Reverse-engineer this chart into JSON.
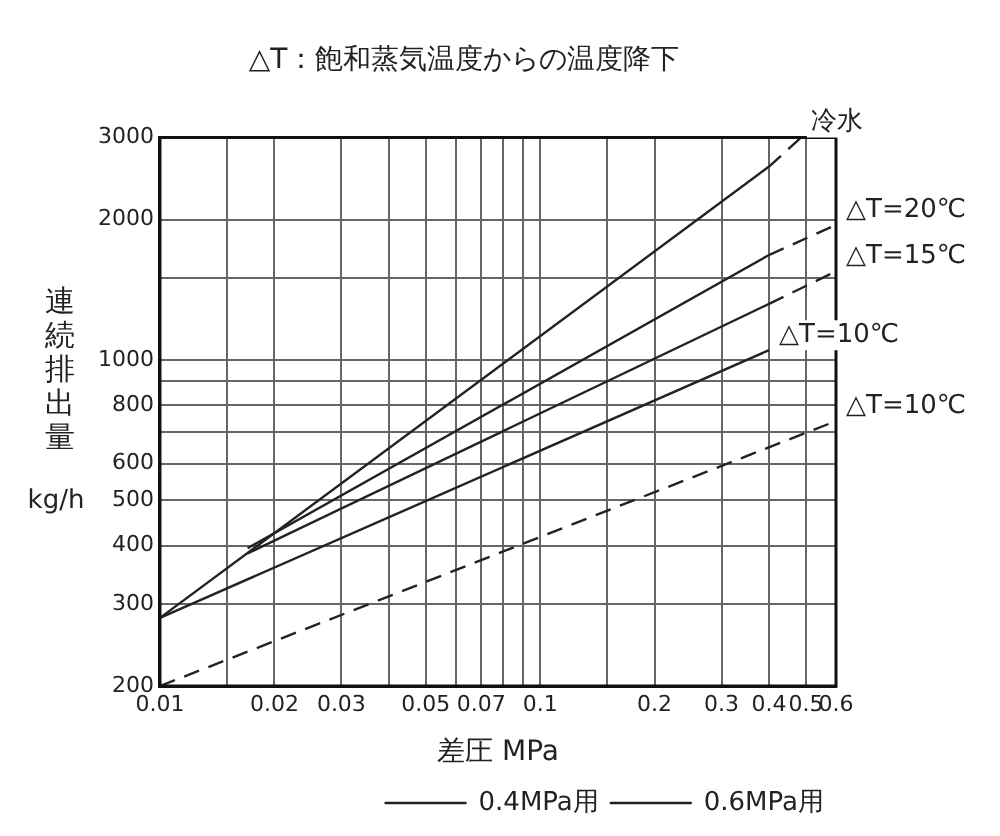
{
  "chart_data": {
    "type": "line",
    "title": "△T：飽和蒸気温度からの温度降下",
    "xlabel": "差圧 MPa",
    "ylabel": "連続排出量 kg/h",
    "log": "xy",
    "grid": true,
    "legend": "bottom right",
    "marker": "none",
    "xlim": [
      0.01,
      0.6
    ],
    "ylim": [
      200,
      3000
    ],
    "xticks": [
      0.01,
      {
        "value": 0.015,
        "label": null
      },
      0.02,
      0.03,
      {
        "value": 0.04,
        "label": null
      },
      0.05,
      {
        "value": 0.06,
        "label": null
      },
      0.07,
      {
        "value": 0.08,
        "label": null
      },
      {
        "value": 0.09,
        "label": null
      },
      0.1,
      {
        "value": 0.15,
        "label": null
      },
      0.2,
      0.3,
      0.4,
      0.5,
      0.6
    ],
    "yticks": [
      200,
      300,
      400,
      500,
      600,
      {
        "value": 700,
        "label": null
      },
      800,
      {
        "value": 900,
        "label": null
      },
      1000,
      {
        "value": 1500,
        "label": null
      },
      2000,
      3000
    ],
    "series": [
      {
        "name": "0.4MPa用",
        "color": "#222222",
        "line_style": "solid",
        "x": [
          0.01,
          0.4
        ],
        "values": [
          280,
          2600
        ]
      },
      {
        "color": "#222222",
        "line_style": "dashed",
        "x": [
          0.4,
          0.485
        ],
        "values": [
          2600,
          3000
        ]
      },
      {
        "color": "#222222",
        "line_style": "solid",
        "x": [
          0.017,
          0.4
        ],
        "values": [
          395,
          1680
        ]
      },
      {
        "color": "#222222",
        "line_style": "dashed",
        "x": [
          0.4,
          0.6
        ],
        "values": [
          1680,
          1950
        ]
      },
      {
        "color": "#222222",
        "line_style": "solid",
        "x": [
          0.017,
          0.4
        ],
        "values": [
          385,
          1320
        ]
      },
      {
        "color": "#222222",
        "line_style": "dashed",
        "x": [
          0.4,
          0.6
        ],
        "values": [
          1320,
          1550
        ]
      },
      {
        "color": "#222222",
        "line_style": "solid",
        "x": [
          0.01,
          0.4
        ],
        "values": [
          280,
          1050
        ]
      },
      {
        "name": "0.6MPa用",
        "color": "#222222",
        "line_style": "dashed",
        "x": [
          0.01,
          0.6
        ],
        "values": [
          200,
          740
        ]
      }
    ],
    "annotations": [
      {
        "text": "冷水",
        "x": 0.485,
        "y": 3000
      },
      {
        "text": "△T=20℃",
        "x": 0.6,
        "y": 1950
      },
      {
        "text": "△T=15℃",
        "x": 0.6,
        "y": 1550
      },
      {
        "text": "△T=10℃",
        "x": 0.4,
        "y": 1050
      },
      {
        "text": "△T=10℃",
        "x": 0.6,
        "y": 740
      }
    ]
  }
}
